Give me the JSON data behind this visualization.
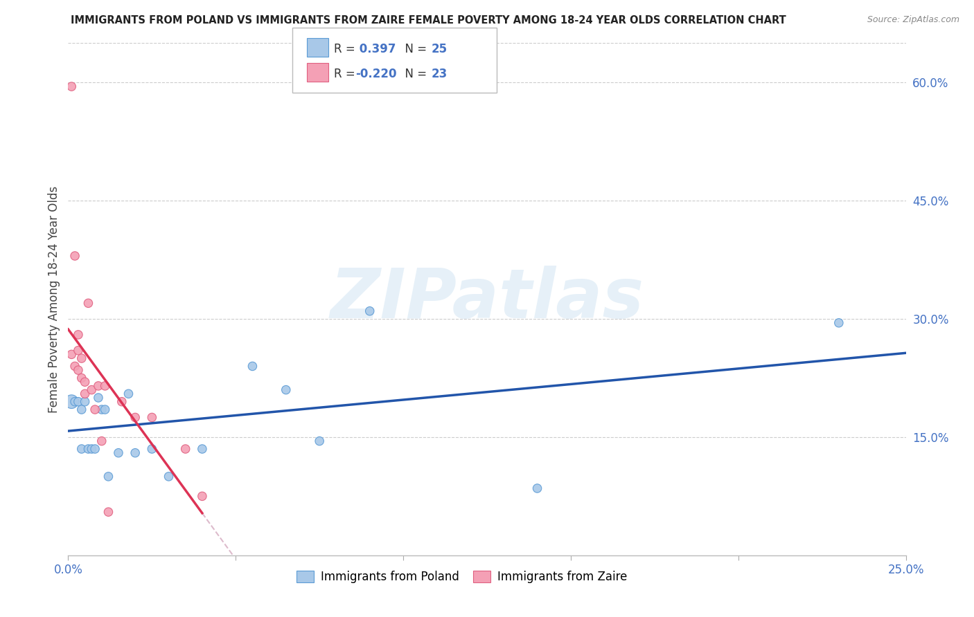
{
  "title": "IMMIGRANTS FROM POLAND VS IMMIGRANTS FROM ZAIRE FEMALE POVERTY AMONG 18-24 YEAR OLDS CORRELATION CHART",
  "source": "Source: ZipAtlas.com",
  "ylabel": "Female Poverty Among 18-24 Year Olds",
  "xlim": [
    0.0,
    0.25
  ],
  "ylim": [
    0.0,
    0.65
  ],
  "xtick_vals": [
    0.0,
    0.05,
    0.1,
    0.15,
    0.2,
    0.25
  ],
  "xtick_labels": [
    "0.0%",
    "",
    "",
    "",
    "",
    "25.0%"
  ],
  "yticks_right": [
    0.15,
    0.3,
    0.45,
    0.6
  ],
  "ytick_labels_right": [
    "15.0%",
    "30.0%",
    "45.0%",
    "60.0%"
  ],
  "poland_color": "#a8c8e8",
  "zaire_color": "#f4a0b5",
  "poland_edge_color": "#5b9bd5",
  "zaire_edge_color": "#e06080",
  "poland_line_color": "#2255aa",
  "zaire_line_color": "#dd3355",
  "poland_R": 0.397,
  "poland_N": 25,
  "zaire_R": -0.22,
  "zaire_N": 23,
  "poland_x": [
    0.001,
    0.002,
    0.003,
    0.004,
    0.004,
    0.005,
    0.006,
    0.007,
    0.008,
    0.009,
    0.01,
    0.011,
    0.012,
    0.015,
    0.018,
    0.02,
    0.025,
    0.03,
    0.04,
    0.055,
    0.065,
    0.075,
    0.09,
    0.14,
    0.23
  ],
  "poland_y": [
    0.195,
    0.195,
    0.195,
    0.135,
    0.185,
    0.195,
    0.135,
    0.135,
    0.135,
    0.2,
    0.185,
    0.185,
    0.1,
    0.13,
    0.205,
    0.13,
    0.135,
    0.1,
    0.135,
    0.24,
    0.21,
    0.145,
    0.31,
    0.085,
    0.295
  ],
  "poland_sizes": [
    200,
    80,
    80,
    80,
    80,
    80,
    80,
    80,
    80,
    80,
    80,
    80,
    80,
    80,
    80,
    80,
    80,
    80,
    80,
    80,
    80,
    80,
    80,
    80,
    80
  ],
  "zaire_x": [
    0.001,
    0.001,
    0.002,
    0.002,
    0.003,
    0.003,
    0.003,
    0.004,
    0.004,
    0.005,
    0.005,
    0.006,
    0.007,
    0.008,
    0.009,
    0.01,
    0.011,
    0.012,
    0.016,
    0.02,
    0.025,
    0.035,
    0.04
  ],
  "zaire_y": [
    0.595,
    0.255,
    0.38,
    0.24,
    0.28,
    0.26,
    0.235,
    0.25,
    0.225,
    0.22,
    0.205,
    0.32,
    0.21,
    0.185,
    0.215,
    0.145,
    0.215,
    0.055,
    0.195,
    0.175,
    0.175,
    0.135,
    0.075
  ],
  "zaire_sizes": [
    80,
    80,
    80,
    80,
    80,
    80,
    80,
    80,
    80,
    80,
    80,
    80,
    80,
    80,
    80,
    80,
    80,
    80,
    80,
    80,
    80,
    80,
    80
  ],
  "watermark_text": "ZIPatlas",
  "background_color": "#ffffff",
  "grid_color": "#cccccc",
  "dashed_line_color": "#ddbbcc"
}
